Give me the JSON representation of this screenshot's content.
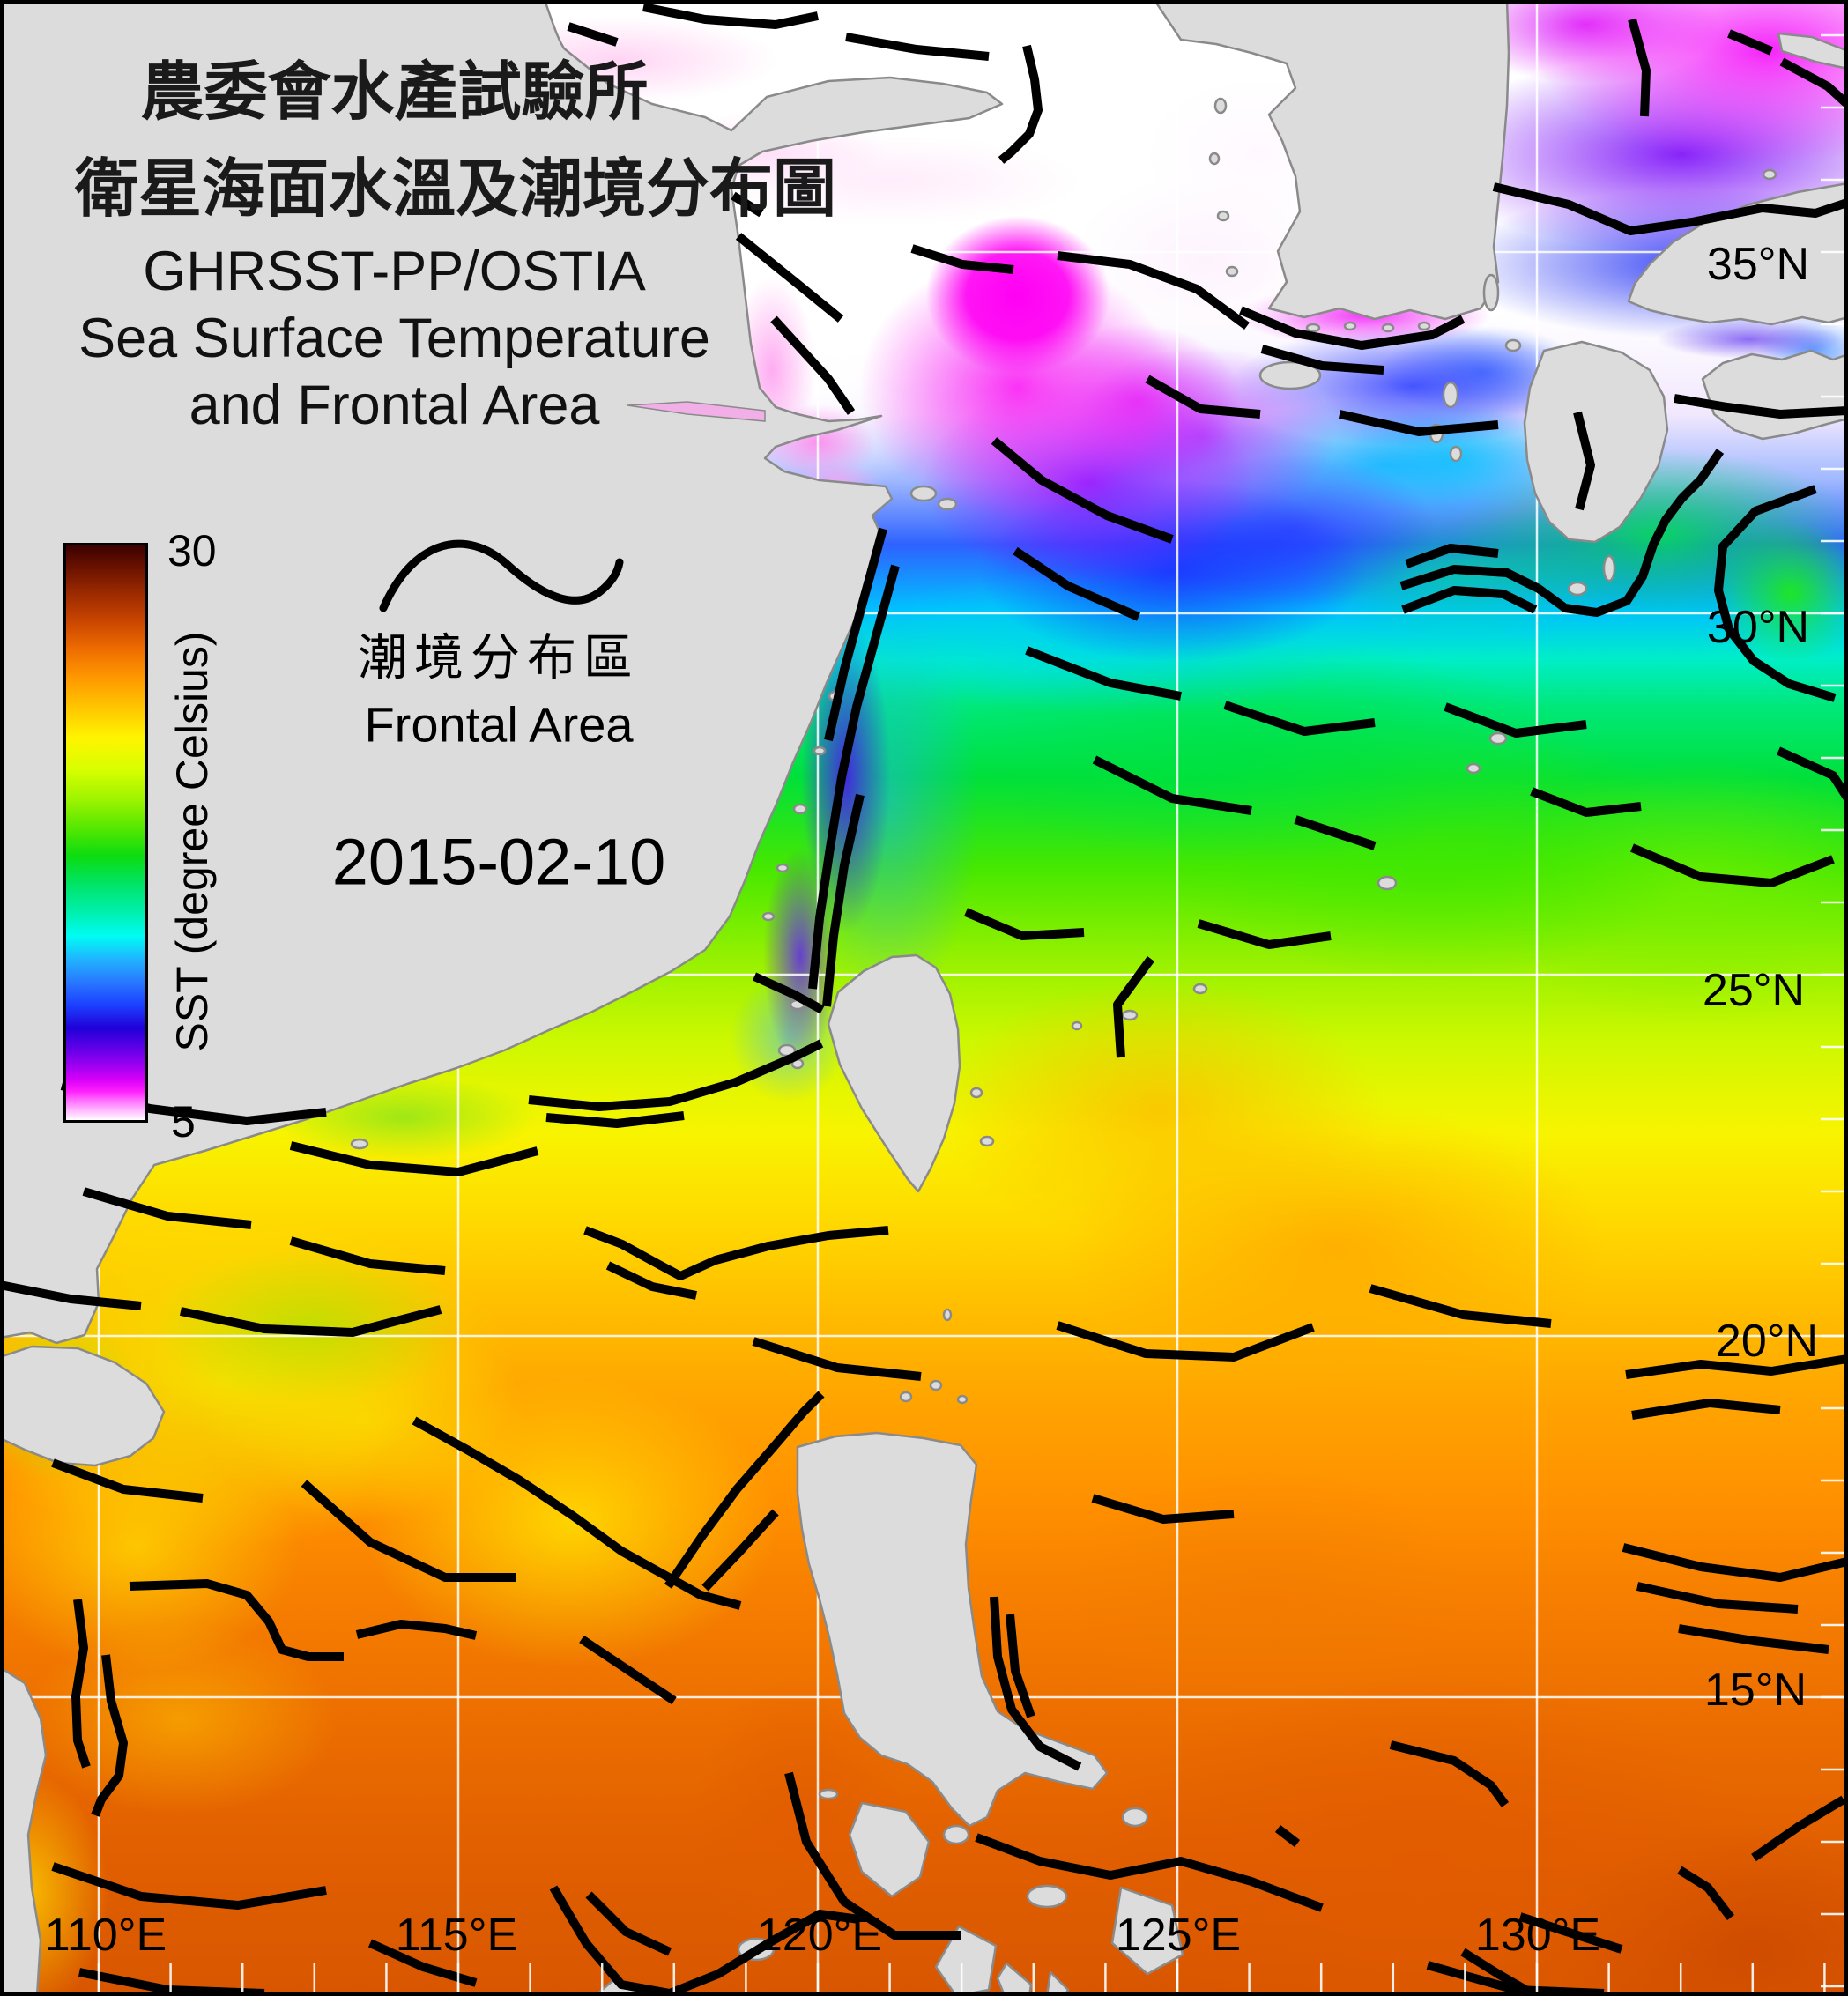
{
  "title": {
    "line1": "農委會水產試驗所",
    "line2": "衛星海面水溫及潮境分布圖",
    "line3": "GHRSST-PP/OSTIA",
    "line4": "Sea Surface Temperature",
    "line5": "and Frontal Area"
  },
  "colorbar": {
    "max": "30",
    "min": "5",
    "label": "SST (degree Celsius)",
    "palette_top_to_bottom": [
      "#3c0000",
      "#982800",
      "#ee6c00",
      "#ff9800",
      "#fff400",
      "#a0f400",
      "#0cdc10",
      "#00f0b0",
      "#00fcf4",
      "#2878ff",
      "#1c40ff",
      "#2000d8",
      "#9c00f0",
      "#ff20fc",
      "#ff78ff",
      "#ffffff"
    ]
  },
  "legend": {
    "frontal_zh": "潮境分布區",
    "frontal_en": "Frontal Area",
    "symbol": "wavy-line"
  },
  "date": "2015-02-10",
  "map": {
    "latitude_labels": [
      "35°N",
      "30°N",
      "25°N",
      "20°N",
      "15°N"
    ],
    "longitude_labels": [
      "110°E",
      "115°E",
      "120°E",
      "125°E",
      "130°E"
    ],
    "land_color": "#dcdcdc",
    "coast_color": "#8a8a8a",
    "front_color": "#000000",
    "grid_color": "#ffffff",
    "frame_color": "#000000"
  }
}
